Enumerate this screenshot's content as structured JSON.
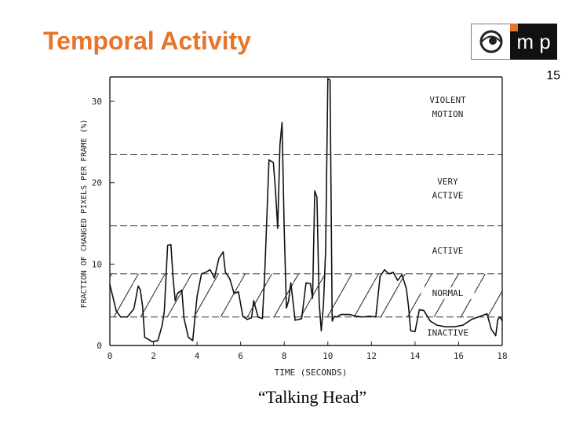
{
  "slide": {
    "title": "Temporal Activity",
    "page_number": "15",
    "caption": "“Talking Head”",
    "title_color": "#e8732a",
    "logo": {
      "text": "m p",
      "icon": "eye-logo-icon",
      "accent": "#e8732a"
    }
  },
  "chart_data": {
    "type": "line",
    "title": "",
    "xlabel": "TIME (SECONDS)",
    "ylabel": "FRACTION OF CHANGED PIXELS PER FRAME (%)",
    "xlim": [
      0,
      18
    ],
    "ylim": [
      0,
      33
    ],
    "xticks": [
      "0",
      "2",
      "4",
      "6",
      "8",
      "10",
      "12",
      "14",
      "16",
      "18"
    ],
    "yticks": [
      "0",
      "10",
      "20",
      "30"
    ],
    "thresholds": [
      {
        "name": "violent",
        "value": 23.5
      },
      {
        "name": "very-active",
        "value": 14.7
      },
      {
        "name": "normal-upper",
        "value": 8.8
      },
      {
        "name": "normal-lower",
        "value": 3.5
      }
    ],
    "regions": [
      {
        "label": "VIOLENT",
        "label2": "MOTION",
        "y": 29.8,
        "y2": 28.1
      },
      {
        "label": "VERY",
        "label2": "ACTIVE",
        "y": 19.8,
        "y2": 18.1
      },
      {
        "label": "ACTIVE",
        "label2": "",
        "y": 11.3,
        "y2": 0
      },
      {
        "label": "NORMAL",
        "label2": "",
        "y": 6.1,
        "y2": 0
      },
      {
        "label": "INACTIVE",
        "label2": "",
        "y": 1.2,
        "y2": 0
      }
    ],
    "series": [
      {
        "name": "Talking Head",
        "x": [
          0,
          0.3,
          0.5,
          0.8,
          1.1,
          1.3,
          1.4,
          1.5,
          1.6,
          1.8,
          1.9,
          2.0,
          2.2,
          2.4,
          2.5,
          2.65,
          2.8,
          2.9,
          3.0,
          3.1,
          3.3,
          3.4,
          3.6,
          3.8,
          4.0,
          4.2,
          4.4,
          4.6,
          4.8,
          5.0,
          5.2,
          5.3,
          5.5,
          5.7,
          5.9,
          6.1,
          6.3,
          6.5,
          6.6,
          6.8,
          7.0,
          7.1,
          7.3,
          7.5,
          7.6,
          7.7,
          7.8,
          7.9,
          8.0,
          8.1,
          8.2,
          8.3,
          8.5,
          8.8,
          9.0,
          9.2,
          9.3,
          9.4,
          9.5,
          9.6,
          9.7,
          9.8,
          9.9,
          10.0,
          10.1,
          10.2,
          10.3,
          10.4,
          10.6,
          11.0,
          11.3,
          11.6,
          11.9,
          12.2,
          12.4,
          12.6,
          12.8,
          13.0,
          13.2,
          13.4,
          13.6,
          13.7,
          13.8,
          14.0,
          14.2,
          14.4,
          14.7,
          15.0,
          15.4,
          15.8,
          16.2,
          16.6,
          17.0,
          17.3,
          17.5,
          17.7,
          17.8,
          17.9,
          18.0
        ],
        "values": [
          7.5,
          4.2,
          3.5,
          3.5,
          4.5,
          7.3,
          6.8,
          4.8,
          1.0,
          0.7,
          0.5,
          0.5,
          0.6,
          2.5,
          4.2,
          12.3,
          12.4,
          8.2,
          5.5,
          6.4,
          6.8,
          3.4,
          1.0,
          0.6,
          6.0,
          8.8,
          9.0,
          9.3,
          8.3,
          10.7,
          11.5,
          9.0,
          8.2,
          6.4,
          6.6,
          3.6,
          3.2,
          3.4,
          5.5,
          3.5,
          3.3,
          8.4,
          22.8,
          22.5,
          19.0,
          14.4,
          24.6,
          27.4,
          14.2,
          4.6,
          5.5,
          7.7,
          3.1,
          3.3,
          7.7,
          7.6,
          5.8,
          19.0,
          18.2,
          5.3,
          1.8,
          5.0,
          11.8,
          32.8,
          32.6,
          3.0,
          3.6,
          3.5,
          3.8,
          3.8,
          3.6,
          3.5,
          3.6,
          3.5,
          8.5,
          9.3,
          8.8,
          9.0,
          8.0,
          8.7,
          7.0,
          4.8,
          1.8,
          1.7,
          4.4,
          4.3,
          3.0,
          2.5,
          2.3,
          2.3,
          2.5,
          3.2,
          3.6,
          3.9,
          2.0,
          1.2,
          3.2,
          3.5,
          3.0
        ]
      }
    ]
  }
}
